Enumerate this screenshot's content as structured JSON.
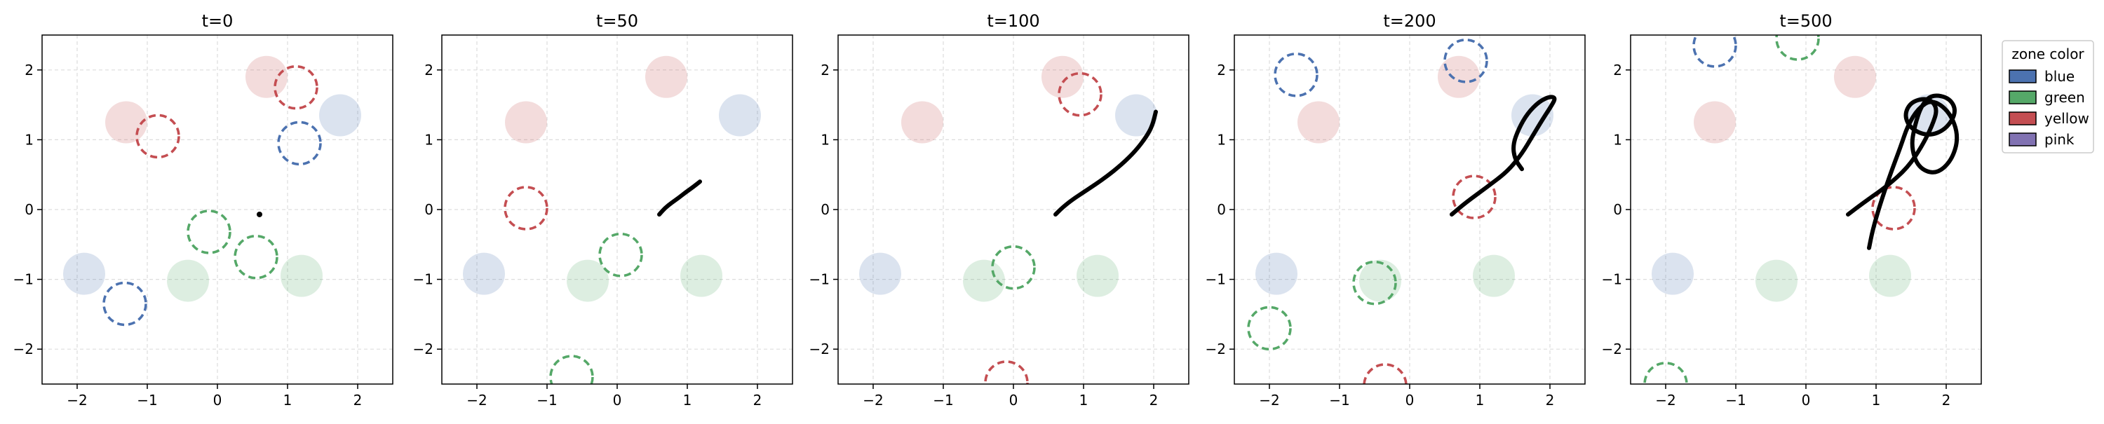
{
  "chart_data": {
    "type": "scatter",
    "xlim": [
      -2.5,
      2.5
    ],
    "ylim": [
      -2.5,
      2.5
    ],
    "x_ticks": [
      -2,
      -1,
      0,
      1,
      2
    ],
    "y_ticks": [
      -2,
      -1,
      0,
      1,
      2
    ],
    "grid": true,
    "zone_radius": 0.3,
    "colors": {
      "blue": "#4c72b0",
      "green": "#55a868",
      "yellow": "#c44e52",
      "pink": "#8172b2",
      "trajectory": "#000000"
    },
    "legend": {
      "title": "zone color",
      "placement": "outside-top-right",
      "entries": [
        {
          "label": "blue",
          "color": "#4c72b0"
        },
        {
          "label": "green",
          "color": "#55a868"
        },
        {
          "label": "yellow",
          "color": "#c44e52"
        },
        {
          "label": "pink",
          "color": "#8172b2"
        }
      ]
    },
    "fixed_zones": [
      {
        "x": 0.7,
        "y": 1.9,
        "color": "yellow"
      },
      {
        "x": -1.3,
        "y": 1.25,
        "color": "yellow"
      },
      {
        "x": 1.75,
        "y": 1.35,
        "color": "blue"
      },
      {
        "x": -1.9,
        "y": -0.92,
        "color": "blue"
      },
      {
        "x": -0.42,
        "y": -1.02,
        "color": "green"
      },
      {
        "x": 1.2,
        "y": -0.95,
        "color": "green"
      }
    ],
    "panels": [
      {
        "title": "t=0",
        "moving_zones": [
          {
            "x": 1.12,
            "y": 1.75,
            "color": "yellow"
          },
          {
            "x": -0.85,
            "y": 1.05,
            "color": "yellow"
          },
          {
            "x": 1.17,
            "y": 0.95,
            "color": "blue"
          },
          {
            "x": -0.12,
            "y": -0.32,
            "color": "green"
          },
          {
            "x": 0.55,
            "y": -0.68,
            "color": "green"
          },
          {
            "x": -1.32,
            "y": -1.35,
            "color": "blue"
          }
        ],
        "trajectory": [
          [
            0.6,
            -0.07
          ]
        ]
      },
      {
        "title": "t=50",
        "moving_zones": [
          {
            "x": -1.3,
            "y": 0.02,
            "color": "yellow"
          },
          {
            "x": 0.05,
            "y": -0.65,
            "color": "green"
          },
          {
            "x": -0.65,
            "y": -2.4,
            "color": "green"
          }
        ],
        "trajectory": [
          [
            0.6,
            -0.07
          ],
          [
            0.68,
            0.02
          ],
          [
            0.78,
            0.1
          ],
          [
            0.88,
            0.17
          ],
          [
            0.98,
            0.25
          ],
          [
            1.08,
            0.32
          ],
          [
            1.18,
            0.4
          ]
        ]
      },
      {
        "title": "t=100",
        "moving_zones": [
          {
            "x": 0.95,
            "y": 1.65,
            "color": "yellow"
          },
          {
            "x": 0.0,
            "y": -0.83,
            "color": "green"
          },
          {
            "x": -0.1,
            "y": -2.48,
            "color": "yellow"
          }
        ],
        "trajectory": [
          [
            0.6,
            -0.07
          ],
          [
            0.7,
            0.03
          ],
          [
            0.85,
            0.15
          ],
          [
            1.05,
            0.28
          ],
          [
            1.3,
            0.45
          ],
          [
            1.55,
            0.65
          ],
          [
            1.75,
            0.85
          ],
          [
            1.9,
            1.05
          ],
          [
            1.98,
            1.2
          ],
          [
            2.03,
            1.4
          ]
        ]
      },
      {
        "title": "t=200",
        "moving_zones": [
          {
            "x": -1.62,
            "y": 1.93,
            "color": "blue"
          },
          {
            "x": 0.8,
            "y": 2.13,
            "color": "blue"
          },
          {
            "x": 0.92,
            "y": 0.18,
            "color": "yellow"
          },
          {
            "x": -0.5,
            "y": -1.05,
            "color": "green"
          },
          {
            "x": -2.0,
            "y": -1.7,
            "color": "green"
          },
          {
            "x": -0.35,
            "y": -2.52,
            "color": "yellow"
          }
        ],
        "trajectory": [
          [
            0.6,
            -0.07
          ],
          [
            0.8,
            0.1
          ],
          [
            1.1,
            0.32
          ],
          [
            1.4,
            0.55
          ],
          [
            1.6,
            0.8
          ],
          [
            1.75,
            1.05
          ],
          [
            1.9,
            1.3
          ],
          [
            2.03,
            1.5
          ],
          [
            2.08,
            1.6
          ],
          [
            2.0,
            1.62
          ],
          [
            1.85,
            1.55
          ],
          [
            1.68,
            1.38
          ],
          [
            1.55,
            1.15
          ],
          [
            1.47,
            0.92
          ],
          [
            1.5,
            0.72
          ],
          [
            1.6,
            0.58
          ]
        ]
      },
      {
        "title": "t=500",
        "moving_zones": [
          {
            "x": -1.3,
            "y": 2.35,
            "color": "blue"
          },
          {
            "x": -0.12,
            "y": 2.45,
            "color": "green"
          },
          {
            "x": 1.25,
            "y": 0.02,
            "color": "yellow"
          },
          {
            "x": -2.0,
            "y": -2.5,
            "color": "green"
          }
        ],
        "trajectory": [
          [
            0.6,
            -0.07
          ],
          [
            0.85,
            0.12
          ],
          [
            1.15,
            0.33
          ],
          [
            1.45,
            0.6
          ],
          [
            1.65,
            0.9
          ],
          [
            1.8,
            1.2
          ],
          [
            1.88,
            1.45
          ],
          [
            1.75,
            1.6
          ],
          [
            1.5,
            1.55
          ],
          [
            1.4,
            1.35
          ],
          [
            1.5,
            1.15
          ],
          [
            1.75,
            1.05
          ],
          [
            2.0,
            1.15
          ],
          [
            2.15,
            1.4
          ],
          [
            2.05,
            1.6
          ],
          [
            1.8,
            1.65
          ],
          [
            1.65,
            1.5
          ],
          [
            1.55,
            1.2
          ],
          [
            1.5,
            0.9
          ],
          [
            1.6,
            0.6
          ],
          [
            1.85,
            0.5
          ],
          [
            2.08,
            0.7
          ],
          [
            2.18,
            1.05
          ],
          [
            2.05,
            1.4
          ],
          [
            1.8,
            1.58
          ],
          [
            1.6,
            1.45
          ],
          [
            1.45,
            1.2
          ],
          [
            1.35,
            0.9
          ],
          [
            1.2,
            0.5
          ],
          [
            1.05,
            0.05
          ],
          [
            0.95,
            -0.3
          ],
          [
            0.9,
            -0.55
          ]
        ]
      }
    ]
  }
}
